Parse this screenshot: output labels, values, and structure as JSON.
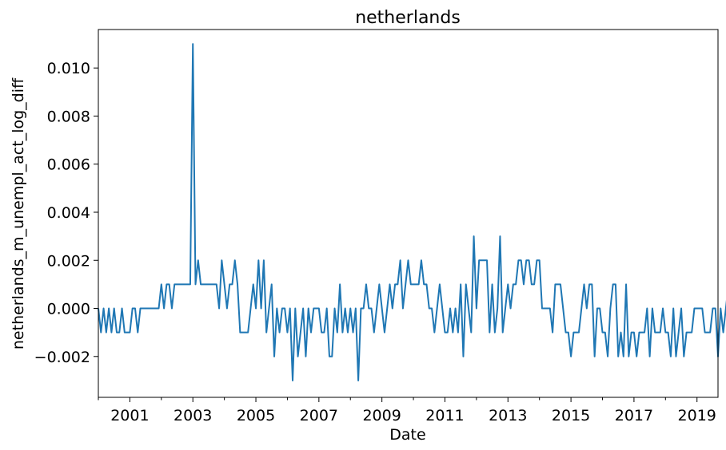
{
  "chart_data": {
    "type": "line",
    "title": "netherlands",
    "xlabel": "Date",
    "ylabel": "netherlands_m_unempl_act_log_diff",
    "x_start": "2000-01",
    "x_frequency": "monthly",
    "xlim": [
      "2000-01",
      "2019-09"
    ],
    "ylim": [
      -0.0037,
      0.0116
    ],
    "x_ticks": [
      "2001",
      "2003",
      "2005",
      "2007",
      "2009",
      "2011",
      "2013",
      "2015",
      "2017",
      "2019"
    ],
    "y_ticks": [
      "−0.002",
      "0.000",
      "0.002",
      "0.004",
      "0.006",
      "0.008",
      "0.010"
    ],
    "grid": false,
    "legend": "none",
    "line_color": "#1f77b4",
    "series": [
      {
        "values": [
          0.0,
          -0.001,
          0.0,
          -0.001,
          0.0,
          -0.001,
          0.0,
          -0.001,
          -0.001,
          0.0,
          -0.001,
          -0.001,
          -0.001,
          0.0,
          0.0,
          -0.001,
          0.0,
          0.0,
          0.0,
          0.0,
          0.0,
          0.0,
          0.0,
          0.0,
          0.001,
          0.0,
          0.001,
          0.001,
          0.0,
          0.001,
          0.001,
          0.001,
          0.001,
          0.001,
          0.001,
          0.001,
          0.011,
          0.001,
          0.002,
          0.001,
          0.001,
          0.001,
          0.001,
          0.001,
          0.001,
          0.001,
          0.0,
          0.002,
          0.001,
          0.0,
          0.001,
          0.001,
          0.002,
          0.001,
          -0.001,
          -0.001,
          -0.001,
          -0.001,
          0.0,
          0.001,
          0.0,
          0.002,
          0.0,
          0.002,
          -0.001,
          0.0,
          0.001,
          -0.002,
          0.0,
          -0.001,
          0.0,
          0.0,
          -0.001,
          0.0,
          -0.003,
          0.0,
          -0.002,
          -0.001,
          0.0,
          -0.002,
          0.0,
          -0.001,
          0.0,
          0.0,
          0.0,
          -0.001,
          -0.001,
          0.0,
          -0.002,
          -0.002,
          0.0,
          -0.001,
          0.001,
          -0.001,
          0.0,
          -0.001,
          0.0,
          -0.001,
          0.0,
          -0.003,
          0.0,
          0.0,
          0.001,
          0.0,
          0.0,
          -0.001,
          0.0,
          0.001,
          0.0,
          -0.001,
          0.0,
          0.001,
          0.0,
          0.001,
          0.001,
          0.002,
          0.0,
          0.001,
          0.002,
          0.001,
          0.001,
          0.001,
          0.001,
          0.002,
          0.001,
          0.001,
          0.0,
          0.0,
          -0.001,
          0.0,
          0.001,
          0.0,
          -0.001,
          -0.001,
          0.0,
          -0.001,
          0.0,
          -0.001,
          0.001,
          -0.002,
          0.001,
          0.0,
          -0.001,
          0.003,
          0.0,
          0.002,
          0.002,
          0.002,
          0.002,
          -0.001,
          0.001,
          -0.001,
          0.0,
          0.003,
          -0.001,
          0.0,
          0.001,
          0.0,
          0.001,
          0.001,
          0.002,
          0.002,
          0.001,
          0.002,
          0.002,
          0.001,
          0.001,
          0.002,
          0.002,
          0.0,
          0.0,
          0.0,
          0.0,
          -0.001,
          0.001,
          0.001,
          0.001,
          0.0,
          -0.001,
          -0.001,
          -0.002,
          -0.001,
          -0.001,
          -0.001,
          0.0,
          0.001,
          0.0,
          0.001,
          0.001,
          -0.002,
          0.0,
          0.0,
          -0.001,
          -0.001,
          -0.002,
          0.0,
          0.001,
          0.001,
          -0.002,
          -0.001,
          -0.002,
          0.001,
          -0.002,
          -0.001,
          -0.001,
          -0.002,
          -0.001,
          -0.001,
          -0.001,
          0.0,
          -0.002,
          0.0,
          -0.001,
          -0.001,
          -0.001,
          0.0,
          -0.001,
          -0.001,
          -0.002,
          0.0,
          -0.002,
          -0.001,
          0.0,
          -0.002,
          -0.001,
          -0.001,
          -0.001,
          0.0,
          0.0,
          0.0,
          0.0,
          -0.001,
          -0.001,
          -0.001,
          0.0,
          0.0,
          -0.002,
          0.0,
          -0.001,
          0.0,
          0.001,
          0.0,
          0.001,
          0.0,
          0.0
        ]
      }
    ]
  }
}
